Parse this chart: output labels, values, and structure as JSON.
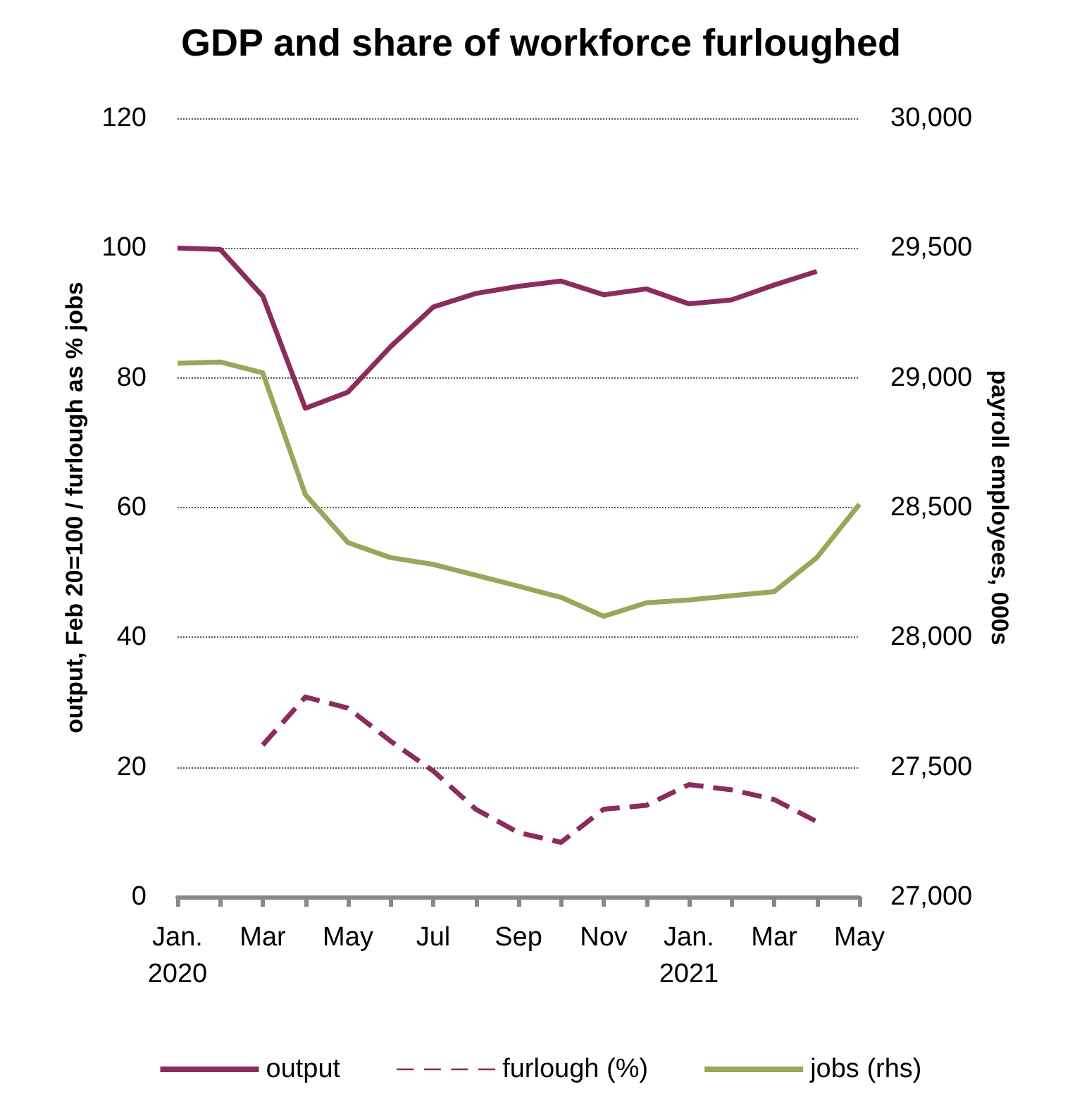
{
  "chart_data": {
    "type": "line",
    "title": "GDP and share of workforce furloughed",
    "ylabel": "output, Feb 20=100 / furlough as % jobs",
    "y2label": "payroll employees, 000s",
    "categories": [
      "Jan.\n2020",
      null,
      "Mar",
      null,
      "May",
      null,
      "Jul",
      null,
      "Sep",
      null,
      "Nov",
      null,
      "Jan.\n2021",
      null,
      "Mar",
      null,
      "May"
    ],
    "series": [
      {
        "name": "output",
        "color": "#8b2c5e",
        "line_style": "solid",
        "values": [
          100,
          99.8,
          92.6,
          75.3,
          77.8,
          84.8,
          90.9,
          93,
          94.1,
          94.9,
          92.8,
          93.7,
          91.4,
          92,
          94.3,
          96.4,
          null
        ]
      },
      {
        "name": "furlough (%)",
        "color": "#8b2c5e",
        "line_style": "dashed",
        "values": [
          null,
          null,
          23.4,
          30.8,
          29.1,
          24,
          19.4,
          13.5,
          9.9,
          8.4,
          13.5,
          14.1,
          17.3,
          16.5,
          15,
          11.6,
          null
        ]
      },
      {
        "name": "jobs (rhs)",
        "color": "#9aa65a",
        "line_style": "solid",
        "axis": "y2",
        "values": [
          29056,
          29061,
          29019,
          28550,
          28365,
          28307,
          28281,
          28239,
          28197,
          28154,
          28081,
          28133,
          28144,
          28160,
          28176,
          28307,
          28513
        ]
      }
    ],
    "ylim": [
      0,
      120
    ],
    "yticks": [
      0,
      20,
      40,
      60,
      80,
      100,
      120
    ],
    "y2lim": [
      27000,
      30000
    ],
    "y2ticks": [
      {
        "value": 27000,
        "label": "27,000"
      },
      {
        "value": 27500,
        "label": "27,500"
      },
      {
        "value": 28000,
        "label": "28,000"
      },
      {
        "value": 28500,
        "label": "28,500"
      },
      {
        "value": 29000,
        "label": "29,000"
      },
      {
        "value": 29500,
        "label": "29,500"
      },
      {
        "value": 30000,
        "label": "30,000"
      }
    ],
    "grid": "y",
    "legend": "bottom",
    "marker": "none"
  }
}
